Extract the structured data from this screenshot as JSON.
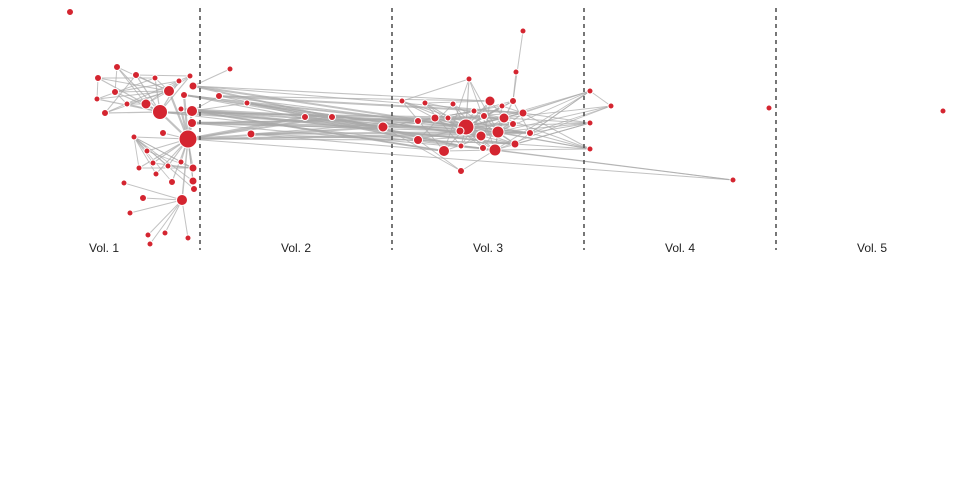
{
  "volumes": [
    {
      "id": "v1",
      "label": "Vol. 1"
    },
    {
      "id": "v2",
      "label": "Vol. 2"
    },
    {
      "id": "v3",
      "label": "Vol. 3"
    },
    {
      "id": "v4",
      "label": "Vol. 4"
    },
    {
      "id": "v5",
      "label": "Vol. 5"
    }
  ],
  "colors": {
    "node_fill": "#d42530",
    "edge": "#a8a8a8",
    "divider": "#555555"
  }
}
